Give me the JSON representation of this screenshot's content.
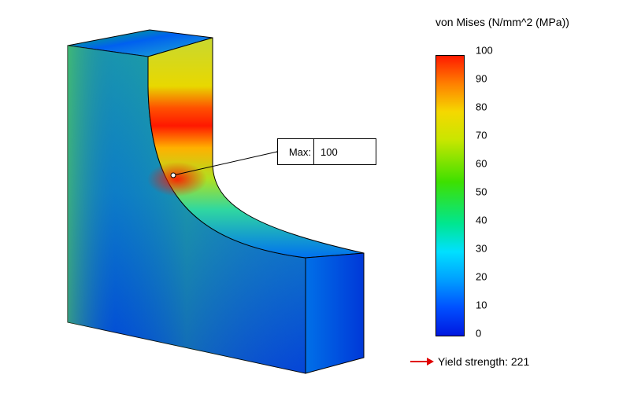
{
  "probe": {
    "label": "Max:",
    "value": "100"
  },
  "legend": {
    "title": "von Mises (N/mm^2 (MPa))",
    "ticks": [
      "100",
      "90",
      "80",
      "70",
      "60",
      "50",
      "40",
      "30",
      "20",
      "10",
      "0"
    ],
    "colormap": [
      "#ff1a00",
      "#ff8000",
      "#f5d800",
      "#c9e600",
      "#3ee000",
      "#00e690",
      "#00e0ff",
      "#00a0ff",
      "#0050ff",
      "#0018e0"
    ]
  },
  "yield": {
    "label": "Yield strength: 221",
    "arrow_color": "#e00000"
  }
}
